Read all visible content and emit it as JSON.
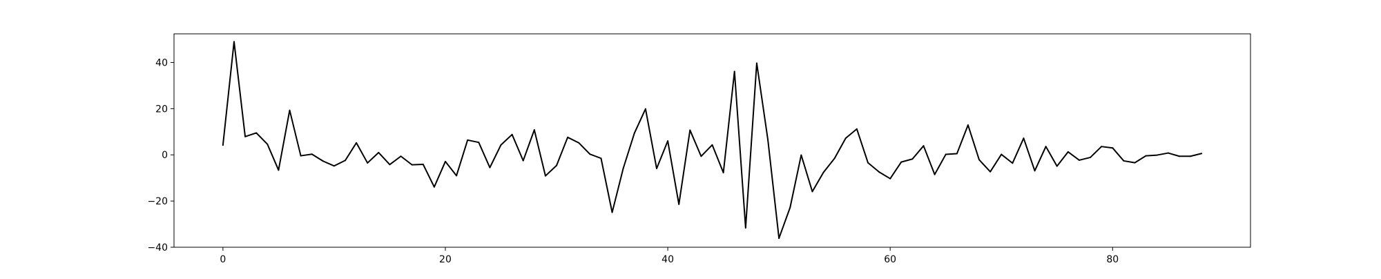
{
  "chart_data": {
    "type": "line",
    "title": "",
    "xlabel": "",
    "ylabel": "",
    "xlim": [
      -4.4,
      92.4
    ],
    "ylim": [
      -40,
      52.4
    ],
    "xticks": [
      0,
      20,
      40,
      60,
      80
    ],
    "yticks": [
      -40,
      -20,
      0,
      20,
      40
    ],
    "xtick_labels": [
      "0",
      "20",
      "40",
      "60",
      "80"
    ],
    "ytick_labels": [
      "−40",
      "−20",
      "0",
      "20",
      "40"
    ],
    "grid": false,
    "legend": "none",
    "series": [
      {
        "color": "#000000",
        "x": [
          0,
          1,
          2,
          3,
          4,
          5,
          6,
          7,
          8,
          9,
          10,
          11,
          12,
          13,
          14,
          15,
          16,
          17,
          18,
          19,
          20,
          21,
          22,
          23,
          24,
          25,
          26,
          27,
          28,
          29,
          30,
          31,
          32,
          33,
          34,
          35,
          36,
          37,
          38,
          39,
          40,
          41,
          42,
          43,
          44,
          45,
          46,
          47,
          48,
          49,
          50,
          51,
          52,
          53,
          54,
          55,
          56,
          57,
          58,
          59,
          60,
          61,
          62,
          63,
          64,
          65,
          66,
          67,
          68,
          69,
          70,
          71,
          72,
          73,
          74,
          75,
          76,
          77,
          78,
          79,
          80,
          81,
          82,
          83,
          84,
          85,
          86,
          87,
          88
        ],
        "y": [
          4.2,
          49.0,
          7.9,
          9.5,
          4.6,
          -6.6,
          19.3,
          -0.4,
          0.3,
          -2.7,
          -4.8,
          -2.4,
          5.2,
          -3.5,
          1.0,
          -4.2,
          -0.6,
          -4.3,
          -4.1,
          -13.9,
          -2.9,
          -9.0,
          6.4,
          5.4,
          -5.5,
          4.3,
          8.8,
          -2.5,
          10.8,
          -9.1,
          -4.6,
          7.6,
          5.2,
          0.3,
          -1.5,
          -24.9,
          -5.8,
          9.4,
          19.9,
          -5.9,
          6.0,
          -21.4,
          10.7,
          -0.6,
          4.3,
          -7.7,
          36.1,
          -31.6,
          39.7,
          6.6,
          -36.1,
          -22.8,
          -0.1,
          -15.9,
          -7.6,
          -1.5,
          7.2,
          11.2,
          -3.4,
          -7.4,
          -10.3,
          -3.1,
          -1.8,
          3.9,
          -8.5,
          0.2,
          0.5,
          12.9,
          -2.1,
          -7.3,
          0.2,
          -3.6,
          7.2,
          -6.9,
          3.6,
          -4.9,
          1.3,
          -2.3,
          -1.1,
          3.6,
          3.0,
          -2.6,
          -3.4,
          -0.4,
          -0.1,
          0.8,
          -0.6,
          -0.6,
          0.6
        ]
      }
    ]
  }
}
